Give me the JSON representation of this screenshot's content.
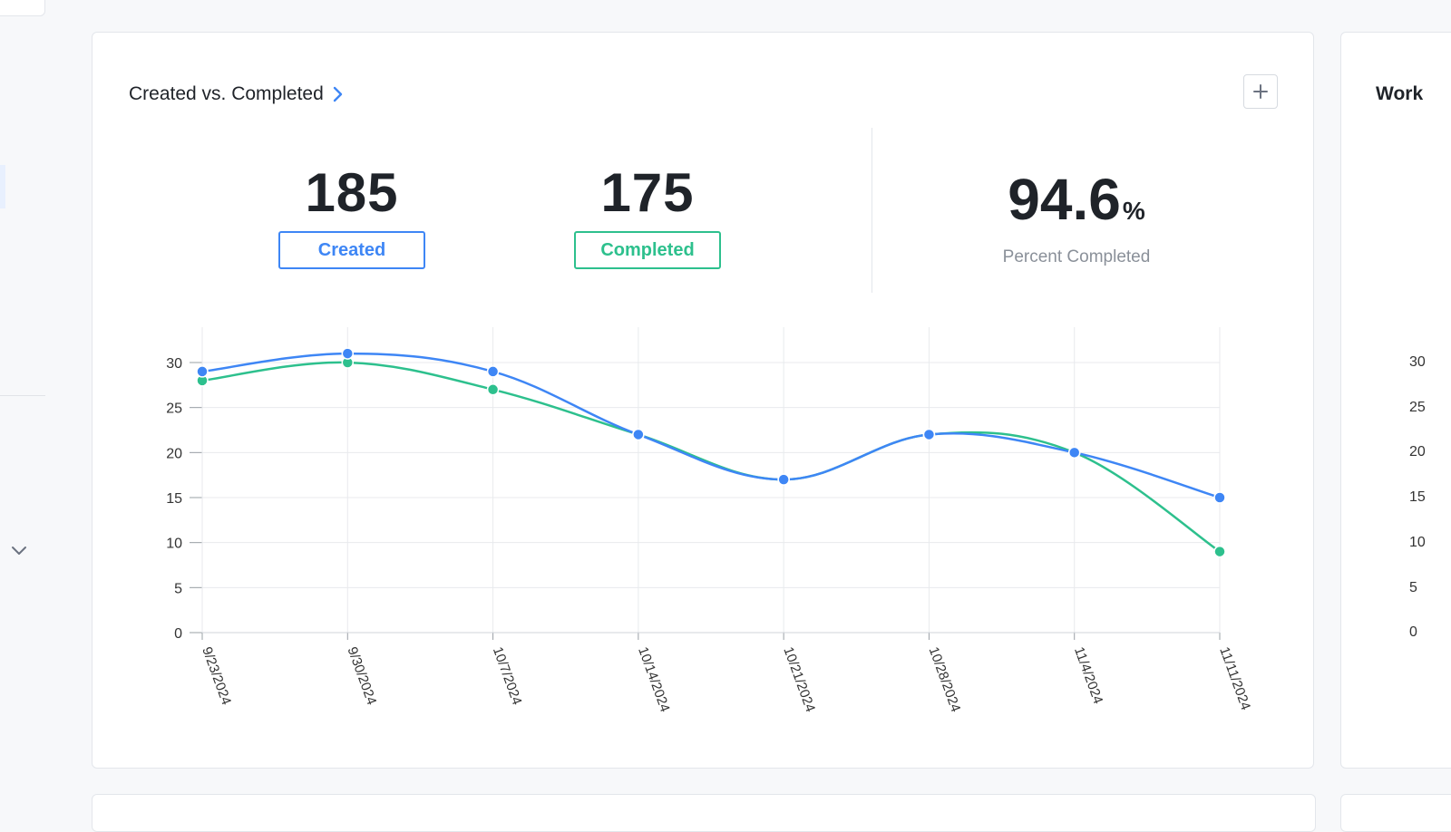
{
  "card": {
    "title": "Created vs. Completed",
    "created_count": "185",
    "created_label": "Created",
    "completed_count": "175",
    "completed_label": "Completed",
    "percent_value": "94.6",
    "percent_unit": "%",
    "percent_label": "Percent Completed"
  },
  "side_card": {
    "title": "Work",
    "y_ticks": [
      "30",
      "25",
      "20",
      "15",
      "10",
      "5",
      "0"
    ]
  },
  "colors": {
    "created": "#3e86f5",
    "completed": "#2dc08d",
    "grid": "#e8eaed",
    "axis_text": "#333333"
  },
  "icons": {
    "title_link": "chevron-right-icon",
    "add": "plus-icon",
    "sidebar_toggle": "chevron-down-icon"
  },
  "chart_data": {
    "type": "line",
    "x": [
      "9/23/2024",
      "9/30/2024",
      "10/7/2024",
      "10/14/2024",
      "10/21/2024",
      "10/28/2024",
      "11/4/2024",
      "11/11/2024"
    ],
    "series": [
      {
        "name": "Created",
        "values": [
          29,
          31,
          29,
          22,
          17,
          22,
          20,
          15
        ]
      },
      {
        "name": "Completed",
        "values": [
          28,
          30,
          27,
          22,
          17,
          22,
          20,
          9
        ]
      }
    ],
    "ylim": [
      0,
      30
    ],
    "yticks": [
      0,
      5,
      10,
      15,
      20,
      25,
      30
    ],
    "grid": true,
    "smooth": true
  }
}
